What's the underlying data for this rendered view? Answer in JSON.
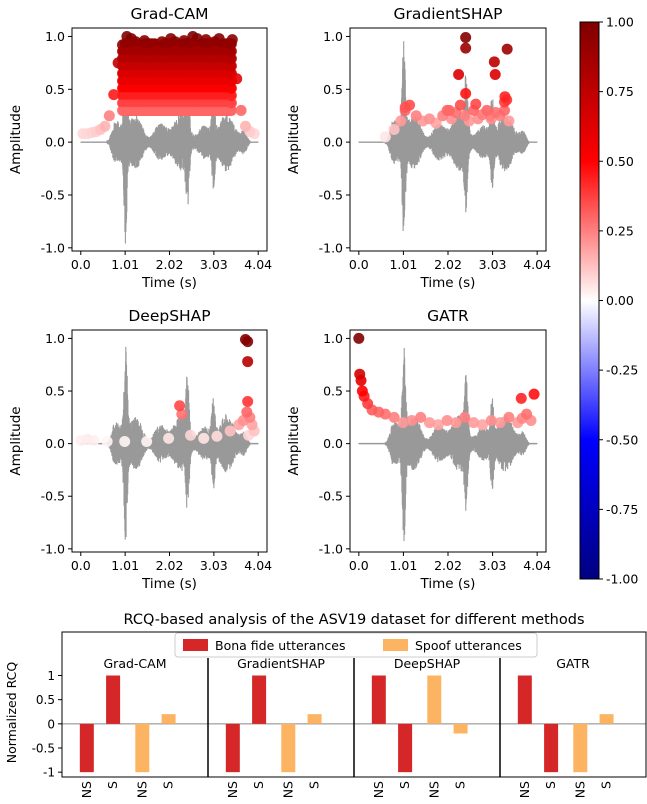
{
  "chart_data": [
    {
      "type": "scatter",
      "title": "Grad-CAM",
      "xlabel": "Time (s)",
      "ylabel": "Amplitude",
      "xticks": [
        "0.0",
        "1.01",
        "2.02",
        "3.03",
        "4.04"
      ],
      "yticks": [
        "-1.0",
        "-0.5",
        "0.0",
        "0.5",
        "1.0"
      ],
      "xlim": [
        -0.2,
        4.24
      ],
      "ylim": [
        -1.03,
        1.08
      ],
      "waveform_color": "#999999",
      "series": [
        {
          "x": [
            0.05,
            0.15,
            0.25,
            0.35,
            0.45,
            0.55,
            0.65,
            0.75,
            0.85,
            0.95,
            1.05,
            1.15,
            1.25,
            1.35,
            1.45,
            1.55,
            1.65,
            1.75,
            1.85,
            1.95,
            2.05,
            2.15,
            2.25,
            2.35,
            2.45,
            2.55,
            2.65,
            2.75,
            2.85,
            2.95,
            3.05,
            3.15,
            3.25,
            3.35,
            3.45,
            3.55,
            3.65,
            3.75,
            3.85,
            3.95
          ],
          "y": [
            0.08,
            0.08,
            0.09,
            0.1,
            0.12,
            0.15,
            0.25,
            0.45,
            0.75,
            0.92,
            1.0,
            0.98,
            0.95,
            0.92,
            0.96,
            0.9,
            0.85,
            0.9,
            0.95,
            0.92,
            0.98,
            0.95,
            0.92,
            0.96,
            0.9,
            1.0,
            0.98,
            0.93,
            0.97,
            0.92,
            0.95,
            0.98,
            0.93,
            0.9,
            0.97,
            0.6,
            0.3,
            0.15,
            0.1,
            0.08
          ]
        }
      ]
    },
    {
      "type": "scatter",
      "title": "GradientSHAP",
      "xlabel": "Time (s)",
      "ylabel": "Amplitude",
      "xticks": [
        "0.0",
        "1.01",
        "2.02",
        "3.03",
        "4.04"
      ],
      "yticks": [
        "-1.0",
        "-0.5",
        "0.0",
        "0.5",
        "1.0"
      ],
      "xlim": [
        -0.2,
        4.24
      ],
      "ylim": [
        -1.03,
        1.08
      ],
      "waveform_color": "#999999",
      "series": [
        {
          "x": [
            0.6,
            0.8,
            0.95,
            1.05,
            1.15,
            1.3,
            1.45,
            1.6,
            1.75,
            1.9,
            2.0,
            2.1,
            2.2,
            2.3,
            2.4,
            2.5,
            2.6,
            2.7,
            2.8,
            2.9,
            3.0,
            3.1,
            3.2,
            3.3,
            3.4,
            2.42,
            2.42,
            3.36,
            2.26,
            3.07,
            3.31,
            2.42,
            2.65,
            3.09,
            3.3,
            2.98,
            3.35,
            1.05,
            2.05
          ],
          "y": [
            0.05,
            0.12,
            0.2,
            0.3,
            0.35,
            0.25,
            0.2,
            0.22,
            0.18,
            0.25,
            0.3,
            0.22,
            0.28,
            0.35,
            0.25,
            0.2,
            0.3,
            0.22,
            0.26,
            0.3,
            0.22,
            0.28,
            0.25,
            0.3,
            0.2,
            0.99,
            0.89,
            0.88,
            0.64,
            0.76,
            0.43,
            0.46,
            0.36,
            0.64,
            0.38,
            0.25,
            0.4,
            0.33,
            0.3
          ]
        }
      ]
    },
    {
      "type": "scatter",
      "title": "DeepSHAP",
      "xlabel": "Time (s)",
      "ylabel": "Amplitude",
      "xticks": [
        "0.0",
        "1.01",
        "2.02",
        "3.03",
        "4.04"
      ],
      "yticks": [
        "-1.0",
        "-0.5",
        "0.0",
        "0.5",
        "1.0"
      ],
      "xlim": [
        -0.2,
        4.24
      ],
      "ylim": [
        -1.03,
        1.08
      ],
      "waveform_color": "#999999",
      "series": [
        {
          "x": [
            0.0,
            0.15,
            0.3,
            0.6,
            1.0,
            1.5,
            2.0,
            2.25,
            2.3,
            2.5,
            2.8,
            3.1,
            3.4,
            3.6,
            3.75,
            3.8,
            3.8,
            3.8,
            3.78,
            3.85,
            3.9,
            3.95,
            3.82,
            3.7
          ],
          "y": [
            0.03,
            0.04,
            0.03,
            0.02,
            0.02,
            0.02,
            0.05,
            0.36,
            0.28,
            0.08,
            0.05,
            0.07,
            0.12,
            0.18,
            0.99,
            0.97,
            0.78,
            0.4,
            0.3,
            0.25,
            0.18,
            0.12,
            0.08,
            0.22
          ]
        }
      ]
    },
    {
      "type": "scatter",
      "title": "GATR",
      "xlabel": "Time (s)",
      "ylabel": "Amplitude",
      "xticks": [
        "0.0",
        "1.01",
        "2.02",
        "3.03",
        "4.04"
      ],
      "yticks": [
        "-1.0",
        "-0.5",
        "0.0",
        "0.5",
        "1.0"
      ],
      "xlim": [
        -0.2,
        4.24
      ],
      "ylim": [
        -1.03,
        1.08
      ],
      "waveform_color": "#999999",
      "series": [
        {
          "x": [
            0.0,
            0.02,
            0.05,
            0.08,
            0.12,
            0.2,
            0.3,
            0.45,
            0.6,
            0.8,
            1.0,
            1.2,
            1.4,
            1.6,
            1.8,
            2.0,
            2.2,
            2.4,
            2.6,
            2.8,
            3.0,
            3.2,
            3.4,
            3.6,
            3.7,
            3.8,
            3.9,
            3.97,
            3.68
          ],
          "y": [
            1.0,
            0.66,
            0.6,
            0.5,
            0.45,
            0.38,
            0.32,
            0.3,
            0.28,
            0.25,
            0.2,
            0.22,
            0.25,
            0.2,
            0.18,
            0.22,
            0.2,
            0.25,
            0.2,
            0.18,
            0.22,
            0.2,
            0.25,
            0.2,
            0.24,
            0.28,
            0.22,
            0.47,
            0.43
          ]
        }
      ]
    },
    {
      "type": "bar",
      "title": "RCQ-based analysis of the ASV19 dataset for different methods",
      "ylabel": "Normalized RCQ",
      "yticks": [
        "-1",
        "-0.5",
        "0",
        "0.5",
        "1"
      ],
      "ylim": [
        -1.1,
        1.9
      ],
      "groups": [
        "Grad-CAM",
        "GradientSHAP",
        "DeepSHAP",
        "GATR"
      ],
      "categories": [
        "NS",
        "S",
        "NS",
        "S"
      ],
      "legend": [
        "Bona fide utterances",
        "Spoof utterances"
      ],
      "legend_placement": "top-center",
      "colors": {
        "bona_fide": "#d62728",
        "spoof": "#fdb462"
      },
      "series": [
        {
          "name": "Bona fide utterances",
          "values": [
            [
              -1,
              1
            ],
            [
              -1,
              1
            ],
            [
              1,
              -1
            ],
            [
              1,
              -1
            ]
          ]
        },
        {
          "name": "Spoof utterances",
          "values": [
            [
              -1,
              0.2
            ],
            [
              -1,
              0.2
            ],
            [
              1,
              -0.2
            ],
            [
              -1,
              0.2
            ]
          ]
        }
      ]
    }
  ],
  "colorbar": {
    "ticks": [
      "1.00",
      "0.75",
      "0.50",
      "0.25",
      "0.00",
      "-0.25",
      "-0.50",
      "-0.75",
      "-1.00"
    ],
    "values": [
      1.0,
      0.75,
      0.5,
      0.25,
      0.0,
      -0.25,
      -0.5,
      -0.75,
      -1.0
    ],
    "colors": [
      "#800000",
      "#ff0000",
      "#ffffff",
      "#0000ff",
      "#000080"
    ]
  }
}
